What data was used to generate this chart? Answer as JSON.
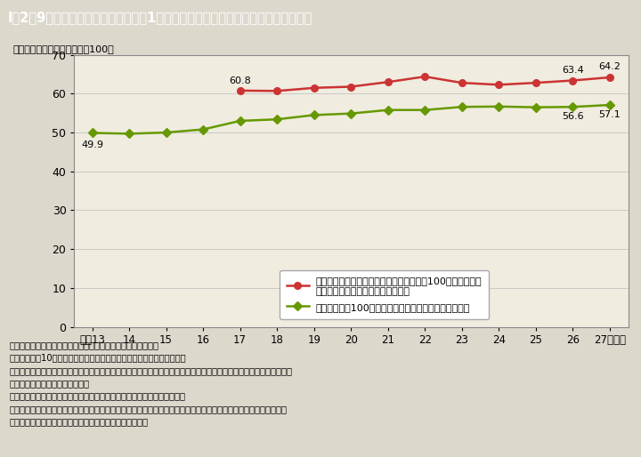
{
  "title": "I－2－9図　雇用形態・就業形態間の1時間当たり所定内給与格差の推移（男女計）",
  "ylabel": "（基準とする労働者の給与＝100）",
  "xlabel_years": [
    "平成13",
    "14",
    "15",
    "16",
    "17",
    "18",
    "19",
    "20",
    "21",
    "22",
    "23",
    "24",
    "25",
    "26",
    "27（年）"
  ],
  "x_values": [
    13,
    14,
    15,
    16,
    17,
    18,
    19,
    20,
    21,
    22,
    23,
    24,
    25,
    26,
    27
  ],
  "red_line": [
    null,
    null,
    null,
    null,
    60.8,
    60.7,
    61.5,
    61.8,
    63.0,
    64.4,
    62.8,
    62.3,
    62.8,
    63.4,
    64.2
  ],
  "green_line": [
    49.9,
    49.7,
    50.0,
    50.8,
    53.0,
    53.4,
    54.5,
    54.9,
    55.8,
    55.8,
    56.6,
    56.7,
    56.5,
    56.6,
    57.1
  ],
  "red_color": "#cc3333",
  "green_color": "#669900",
  "bg_color": "#ddd8cc",
  "plot_bg": "#f0ece0",
  "title_bg": "#4a7ba0",
  "title_fg": "#ffffff",
  "legend_label_red_1": "一般労働者における「正社員・正職員」を100とした場合の",
  "legend_label_red_2": "「正社員・正職員以外」の給与水準",
  "legend_label_green": "一般労働者を100とした場合の短時間労働者の給与水準",
  "note_line1": "（備考）１．厚生労働省「賃金構造基本統計調査」より作成。",
  "note_line2": "　　　　２．10人以上の常用労働者を雇用する民営事業所における値。",
  "note_line3": "　　　　３．一般労働者における１時間当たり所定内給与額は，「各年６月分の所定内給与額」／「各年６月分の所定",
  "note_line4": "　　　　　　内実労働時間数」。",
  "note_line5": "　　　　４．一般労働者とは，常用労働者のうち短時間労働者以外の者。",
  "note_line6": "　　　　５．短時間労働者とは，同一事業所の一般の労働者より１日の所定労働時間が短い又は１日の所定労働時間",
  "note_line7": "　　　　　　が同じでも１週の所定労働日数が少ない者。",
  "ylim": [
    0,
    70
  ],
  "yticks": [
    0,
    10,
    20,
    30,
    40,
    50,
    60,
    70
  ]
}
